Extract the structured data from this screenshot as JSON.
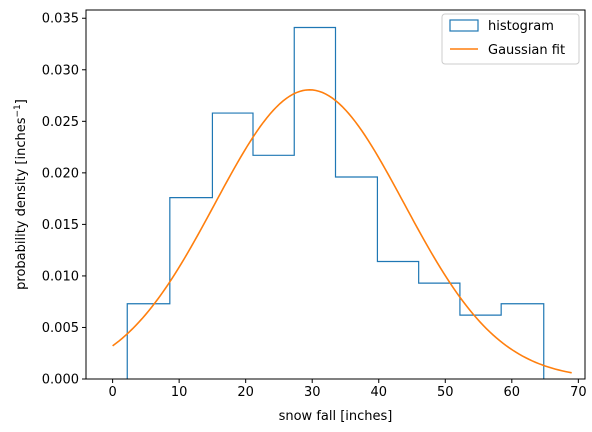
{
  "chart_data": {
    "type": "histogram",
    "xlabel": "snow fall [inches]",
    "ylabel_base": "probability density [inches",
    "ylabel_sup": "−1",
    "ylabel_close": "]",
    "xlim": [
      -4,
      71
    ],
    "ylim": [
      0,
      0.0358
    ],
    "xticks": [
      0,
      10,
      20,
      30,
      40,
      50,
      60,
      70
    ],
    "xtick_labels": [
      "0",
      "10",
      "20",
      "30",
      "40",
      "50",
      "60",
      "70"
    ],
    "yticks": [
      0.0,
      0.005,
      0.01,
      0.015,
      0.02,
      0.025,
      0.03,
      0.035
    ],
    "ytick_labels": [
      "0.000",
      "0.005",
      "0.010",
      "0.015",
      "0.020",
      "0.025",
      "0.030",
      "0.035"
    ],
    "grid": false,
    "legend_position": "top-right",
    "series": [
      {
        "name": "histogram",
        "kind": "step-histogram",
        "color": "#1f77b4",
        "bin_edges": [
          2.2,
          8.6,
          15.0,
          21.1,
          27.3,
          33.5,
          39.8,
          46.0,
          52.2,
          58.4,
          64.8
        ],
        "densities": [
          0.0073,
          0.0176,
          0.0258,
          0.0217,
          0.0341,
          0.0196,
          0.0114,
          0.0093,
          0.0062,
          0.0073
        ]
      },
      {
        "name": "Gaussian fit",
        "kind": "line",
        "color": "#ff7f0e",
        "mean": 29.6,
        "std": 14.22,
        "x_range": [
          0,
          69
        ]
      }
    ]
  }
}
